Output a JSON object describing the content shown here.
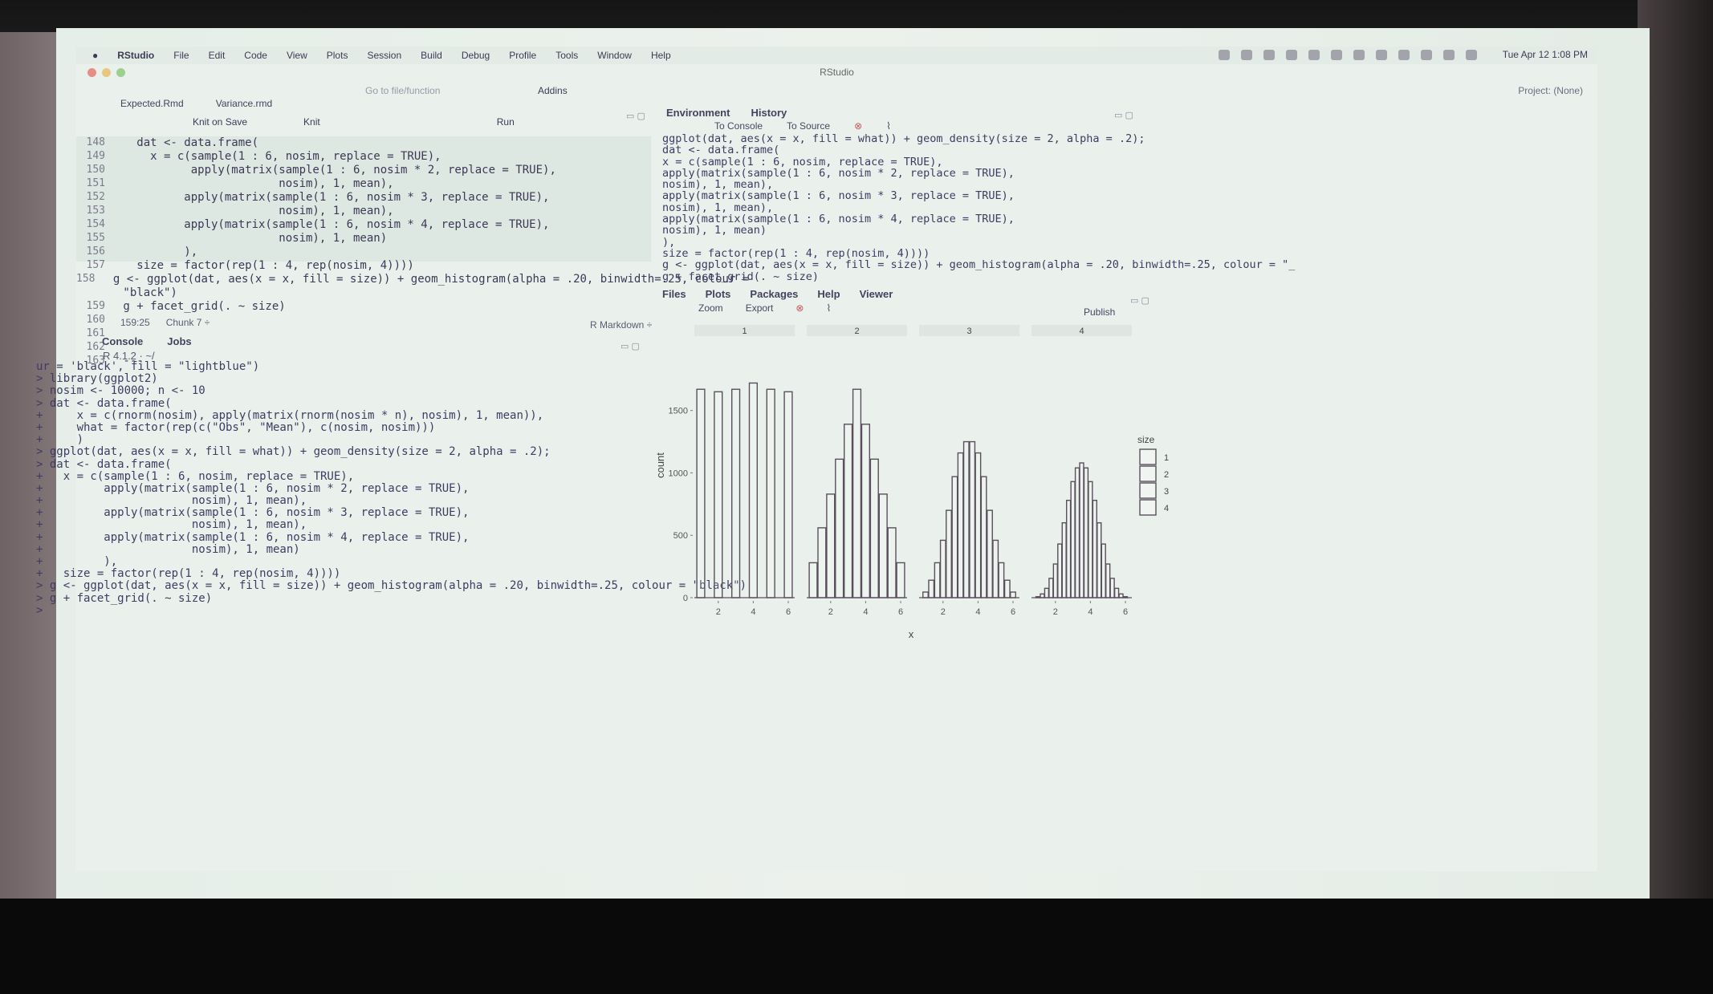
{
  "menubar": {
    "app": "RStudio",
    "items": [
      "File",
      "Edit",
      "Code",
      "View",
      "Plots",
      "Session",
      "Build",
      "Debug",
      "Profile",
      "Tools",
      "Window",
      "Help"
    ],
    "clock": "Tue Apr 12  1:08 PM"
  },
  "window_title": "RStudio",
  "toolbar": {
    "goto_placeholder": "Go to file/function",
    "addins": "Addins",
    "project": "Project: (None)"
  },
  "source": {
    "tabs": [
      "Expected.Rmd",
      "Variance.rmd"
    ],
    "toolbar": {
      "knit_on_save": "Knit on Save",
      "knit": "Knit",
      "run": "Run"
    },
    "lines": [
      {
        "n": "148",
        "code": "   dat <- data.frame("
      },
      {
        "n": "149",
        "code": "     x = c(sample(1 : 6, nosim, replace = TRUE),"
      },
      {
        "n": "150",
        "code": "           apply(matrix(sample(1 : 6, nosim * 2, replace = TRUE),"
      },
      {
        "n": "151",
        "code": "                        nosim), 1, mean),"
      },
      {
        "n": "152",
        "code": "          apply(matrix(sample(1 : 6, nosim * 3, replace = TRUE),"
      },
      {
        "n": "153",
        "code": "                        nosim), 1, mean),"
      },
      {
        "n": "154",
        "code": "          apply(matrix(sample(1 : 6, nosim * 4, replace = TRUE),"
      },
      {
        "n": "155",
        "code": "                        nosim), 1, mean)"
      },
      {
        "n": "156",
        "code": "          ),"
      },
      {
        "n": "157",
        "code": "   size = factor(rep(1 : 4, rep(nosim, 4))))"
      },
      {
        "n": "158",
        "code": " g <- ggplot(dat, aes(x = x, fill = size)) + geom_histogram(alpha = .20, binwidth=.25, colour ="
      },
      {
        "n": "",
        "code": " \"black\")"
      },
      {
        "n": "159",
        "code": " g + facet_grid(. ~ size)"
      },
      {
        "n": "160",
        "code": ""
      },
      {
        "n": "161",
        "code": ""
      },
      {
        "n": "162",
        "code": ""
      },
      {
        "n": "163",
        "code": " ---"
      }
    ],
    "status_position": "159:25",
    "status_chunk": "Chunk 7 ÷",
    "mode": "R Markdown ÷"
  },
  "console": {
    "tabs": [
      "Console",
      "Jobs"
    ],
    "version": "R 4.1.2 · ~/",
    "lines": [
      "ur = 'black', fill = \"lightblue\")",
      "> library(ggplot2)",
      "> nosim <- 10000; n <- 10",
      "> dat <- data.frame(",
      "+     x = c(rnorm(nosim), apply(matrix(rnorm(nosim * n), nosim), 1, mean)),",
      "+     what = factor(rep(c(\"Obs\", \"Mean\"), c(nosim, nosim)))",
      "+     )",
      "> ggplot(dat, aes(x = x, fill = what)) + geom_density(size = 2, alpha = .2);",
      "> dat <- data.frame(",
      "+   x = c(sample(1 : 6, nosim, replace = TRUE),",
      "+         apply(matrix(sample(1 : 6, nosim * 2, replace = TRUE),",
      "+                      nosim), 1, mean),",
      "+         apply(matrix(sample(1 : 6, nosim * 3, replace = TRUE),",
      "+                      nosim), 1, mean),",
      "+         apply(matrix(sample(1 : 6, nosim * 4, replace = TRUE),",
      "+                      nosim), 1, mean)",
      "+         ),",
      "+   size = factor(rep(1 : 4, rep(nosim, 4))))",
      "> g <- ggplot(dat, aes(x = x, fill = size)) + geom_histogram(alpha = .20, binwidth=.25, colour = \"black\")",
      "> g + facet_grid(. ~ size)",
      ">"
    ]
  },
  "environment": {
    "tabs": [
      "Environment",
      "History"
    ],
    "toolbar": {
      "to_console": "To Console",
      "to_source": "To Source"
    },
    "lines": [
      "ggplot(dat, aes(x = x, fill = what)) + geom_density(size = 2, alpha = .2);",
      "dat <- data.frame(",
      "x = c(sample(1 : 6, nosim, replace = TRUE),",
      "apply(matrix(sample(1 : 6, nosim * 2, replace = TRUE),",
      "nosim), 1, mean),",
      "apply(matrix(sample(1 : 6, nosim * 3, replace = TRUE),",
      "nosim), 1, mean),",
      "apply(matrix(sample(1 : 6, nosim * 4, replace = TRUE),",
      "nosim), 1, mean)",
      "),",
      "size = factor(rep(1 : 4, rep(nosim, 4))))",
      "g <- ggplot(dat, aes(x = x, fill = size)) + geom_histogram(alpha = .20, binwidth=.25, colour = \"_",
      "g + facet_grid(. ~ size)"
    ]
  },
  "files_pane": {
    "tabs": [
      "Files",
      "Plots",
      "Packages",
      "Help",
      "Viewer"
    ],
    "toolbar": {
      "zoom": "Zoom",
      "export": "Export",
      "publish": "Publish"
    }
  },
  "chart_data": {
    "type": "bar",
    "xlabel": "x",
    "ylabel": "count",
    "ylim": [
      0,
      1800
    ],
    "yticks": [
      0,
      500,
      1000,
      1500
    ],
    "xticks": [
      2,
      4,
      6
    ],
    "legend": {
      "title": "size",
      "entries": [
        "1",
        "2",
        "3",
        "4"
      ],
      "position": "right"
    },
    "facets": [
      {
        "label": "1",
        "bins": [
          [
            1,
            1670
          ],
          [
            1.5,
            0
          ],
          [
            2,
            1650
          ],
          [
            2.5,
            0
          ],
          [
            3,
            1670
          ],
          [
            3.5,
            0
          ],
          [
            4,
            1720
          ],
          [
            4.5,
            0
          ],
          [
            5,
            1670
          ],
          [
            5.5,
            0
          ],
          [
            6,
            1650
          ]
        ]
      },
      {
        "label": "2",
        "bins": [
          [
            1,
            280
          ],
          [
            1.5,
            560
          ],
          [
            2,
            830
          ],
          [
            2.5,
            1110
          ],
          [
            3,
            1390
          ],
          [
            3.5,
            1670
          ],
          [
            4,
            1390
          ],
          [
            4.5,
            1110
          ],
          [
            5,
            830
          ],
          [
            5.5,
            560
          ],
          [
            6,
            280
          ]
        ]
      },
      {
        "label": "3",
        "bins": [
          [
            1,
            45
          ],
          [
            1.33,
            140
          ],
          [
            1.67,
            280
          ],
          [
            2,
            460
          ],
          [
            2.33,
            700
          ],
          [
            2.67,
            970
          ],
          [
            3,
            1160
          ],
          [
            3.33,
            1250
          ],
          [
            3.67,
            1250
          ],
          [
            4,
            1160
          ],
          [
            4.33,
            970
          ],
          [
            4.67,
            700
          ],
          [
            5,
            460
          ],
          [
            5.33,
            280
          ],
          [
            5.67,
            140
          ],
          [
            6,
            45
          ]
        ]
      },
      {
        "label": "4",
        "bins": [
          [
            1,
            8
          ],
          [
            1.25,
            30
          ],
          [
            1.5,
            75
          ],
          [
            1.75,
            155
          ],
          [
            2,
            270
          ],
          [
            2.25,
            430
          ],
          [
            2.5,
            600
          ],
          [
            2.75,
            780
          ],
          [
            3,
            930
          ],
          [
            3.25,
            1040
          ],
          [
            3.5,
            1080
          ],
          [
            3.75,
            1040
          ],
          [
            4,
            930
          ],
          [
            4.25,
            780
          ],
          [
            4.5,
            600
          ],
          [
            4.75,
            430
          ],
          [
            5,
            270
          ],
          [
            5.25,
            155
          ],
          [
            5.5,
            75
          ],
          [
            5.75,
            30
          ],
          [
            6,
            8
          ]
        ]
      }
    ]
  },
  "colors": {
    "text": "#3d3a55",
    "background": "#eaf1ec",
    "bar_stroke": "#5a4f5c"
  }
}
